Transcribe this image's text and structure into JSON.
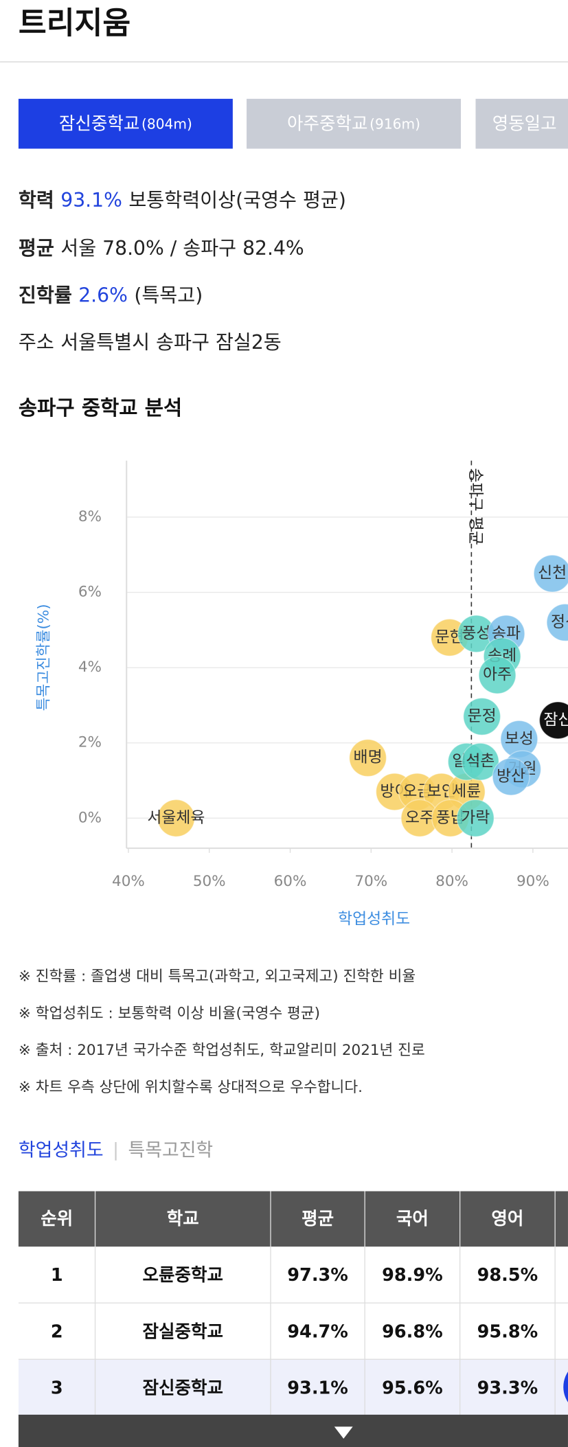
{
  "header": {
    "title": "트리지움"
  },
  "tabs": [
    {
      "name": "잠신중학교",
      "distance": "(804m)"
    },
    {
      "name": "아주중학교",
      "distance": "(916m)"
    },
    {
      "name": "영동일고"
    }
  ],
  "info": [
    {
      "label": "학력",
      "value": "93.1%",
      "text": "보통학력이상(국영수 평균)"
    },
    {
      "label": "평균",
      "text": "서울 78.0% / 송파구 82.4%"
    },
    {
      "label": "진학률",
      "value": "2.6%",
      "text": "(특목고)"
    },
    {
      "label": "주소",
      "text": "서울특별시 송파구 잠실2동"
    }
  ],
  "section_title": "송파구 중학교 분석",
  "chart_data": {
    "type": "scatter",
    "x_label": "학업성취도",
    "y_label": "특목고진학률(%)",
    "xlim": [
      40,
      100
    ],
    "ylim": [
      -0.8,
      9.5
    ],
    "xticks": [
      {
        "value": 40,
        "label": "40%"
      },
      {
        "value": 50,
        "label": "50%"
      },
      {
        "value": 60,
        "label": "60%"
      },
      {
        "value": 70,
        "label": "70%"
      },
      {
        "value": 80,
        "label": "80%"
      },
      {
        "value": 90,
        "label": "90%"
      }
    ],
    "yticks": [
      {
        "value": 0,
        "label": "0%"
      },
      {
        "value": 2,
        "label": "2%"
      },
      {
        "value": 4,
        "label": "4%"
      },
      {
        "value": 6,
        "label": "6%"
      },
      {
        "value": 8,
        "label": "8%"
      }
    ],
    "grid": true,
    "average": {
      "label": "송파구 평균",
      "x": 82.4
    },
    "points": [
      {
        "label": "서울체육",
        "x": 45.9,
        "y": 0,
        "color": "#f8cf5f"
      },
      {
        "label": "배명",
        "x": 69.6,
        "y": 1.6,
        "color": "#f8cf5f"
      },
      {
        "label": "방이",
        "x": 72.9,
        "y": 0.7,
        "color": "#f8cf5f"
      },
      {
        "label": "오금",
        "x": 75.7,
        "y": 0.7,
        "color": "#f8cf5f"
      },
      {
        "label": "보인",
        "x": 78.7,
        "y": 0.7,
        "color": "#f8cf5f"
      },
      {
        "label": "세륜",
        "x": 81.8,
        "y": 0.7,
        "color": "#f8cf5f"
      },
      {
        "label": "오주",
        "x": 76.0,
        "y": 0,
        "color": "#f8cf5f"
      },
      {
        "label": "풍납",
        "x": 79.8,
        "y": 0,
        "color": "#f8cf5f"
      },
      {
        "label": "가락",
        "x": 82.9,
        "y": 0,
        "color": "#5dd3c6"
      },
      {
        "label": "문현",
        "x": 79.7,
        "y": 4.8,
        "color": "#f8cf5f"
      },
      {
        "label": "풍성",
        "x": 83.0,
        "y": 4.9,
        "color": "#5dd3c6"
      },
      {
        "label": "송파",
        "x": 86.7,
        "y": 4.9,
        "color": "#7dbfeb"
      },
      {
        "label": "송례",
        "x": 86.2,
        "y": 4.3,
        "color": "#5dd3c6"
      },
      {
        "label": "아주",
        "x": 85.6,
        "y": 3.8,
        "color": "#5dd3c6"
      },
      {
        "label": "신천",
        "x": 92.4,
        "y": 6.5,
        "color": "#7dbfeb"
      },
      {
        "label": "문정",
        "x": 83.7,
        "y": 2.7,
        "color": "#5dd3c6"
      },
      {
        "label": "일신",
        "x": 81.8,
        "y": 1.5,
        "color": "#5dd3c6"
      },
      {
        "label": "석촌",
        "x": 83.5,
        "y": 1.5,
        "color": "#5dd3c6"
      },
      {
        "label": "보성",
        "x": 88.3,
        "y": 2.1,
        "color": "#7dbfeb"
      },
      {
        "label": "거원",
        "x": 88.7,
        "y": 1.3,
        "color": "#7dbfeb"
      },
      {
        "label": "방산",
        "x": 87.3,
        "y": 1.1,
        "color": "#7dbfeb"
      },
      {
        "label": "정신",
        "x": 94.0,
        "y": 5.2,
        "color": "#7dbfeb"
      },
      {
        "label": "잠신",
        "x": 93.1,
        "y": 2.6,
        "color": "#111111"
      }
    ]
  },
  "notes": [
    "※ 진학률 : 졸업생 대비 특목고(과학고, 외고국제고) 진학한 비율",
    "※ 학업성취도 : 보통학력 이상 비율(국영수 평균)",
    "※ 출처 : 2017년 국가수준 학업성취도, 학교알리미 2021년 진로",
    "※ 차트 우측 상단에 위치할수록 상대적으로 우수합니다."
  ],
  "table_tabs": [
    "학업성취도",
    "특목고진학"
  ],
  "table": {
    "columns": [
      "순위",
      "학교",
      "평균",
      "국어",
      "영어"
    ],
    "rows": [
      [
        "1",
        "오륜중학교",
        "97.3%",
        "98.9%",
        "98.5%"
      ],
      [
        "2",
        "잠실중학교",
        "94.7%",
        "96.8%",
        "95.8%"
      ],
      [
        "3",
        "잠신중학교",
        "93.1%",
        "95.6%",
        "93.3%"
      ]
    ]
  }
}
